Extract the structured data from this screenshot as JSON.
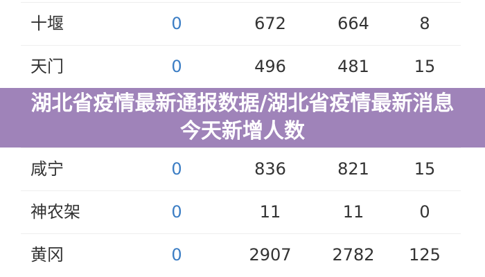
{
  "table": {
    "rows": [
      {
        "name": "十堰",
        "c1": "0",
        "c2": "672",
        "c3": "664",
        "c4": "8"
      },
      {
        "name": "天门",
        "c1": "0",
        "c2": "496",
        "c3": "481",
        "c4": "15"
      },
      {
        "name": "咸宁",
        "c1": "0",
        "c2": "836",
        "c3": "821",
        "c4": "15"
      },
      {
        "name": "神农架",
        "c1": "0",
        "c2": "11",
        "c3": "11",
        "c4": "0"
      },
      {
        "name": "黄冈",
        "c1": "0",
        "c2": "2907",
        "c3": "2782",
        "c4": "125"
      }
    ]
  },
  "banner": {
    "title": "湖北省疫情最新通报数据/湖北省疫情最新消息今天新增人数",
    "color": "#9f83b9"
  },
  "colors": {
    "zero_value": "#3b7dc4"
  }
}
